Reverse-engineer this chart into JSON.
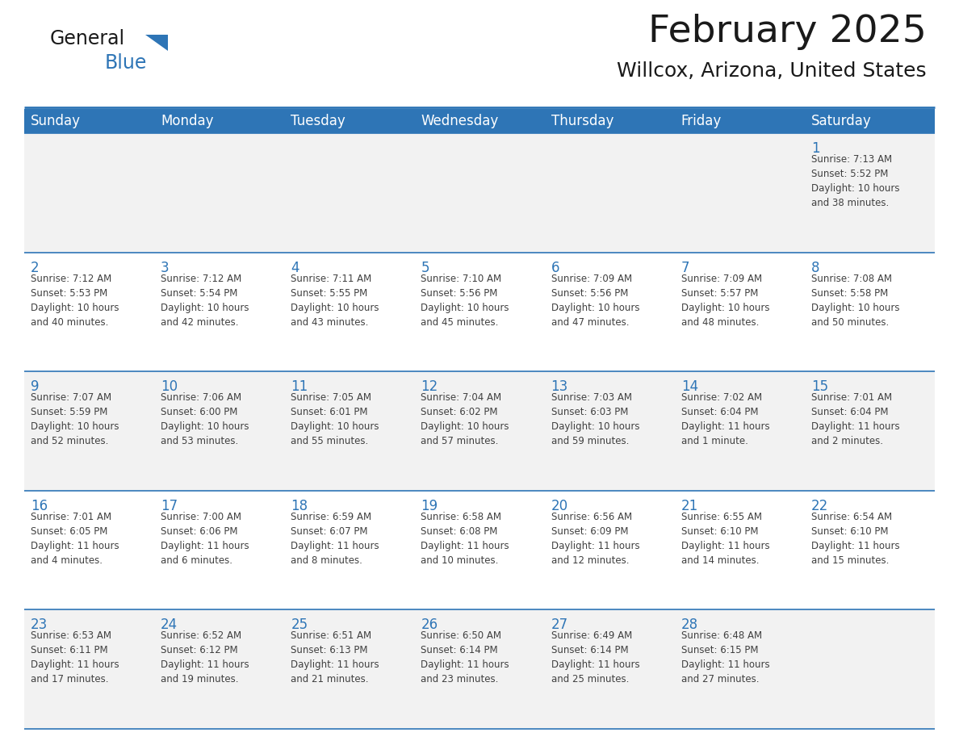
{
  "title": "February 2025",
  "subtitle": "Willcox, Arizona, United States",
  "header_bg": "#2E75B6",
  "header_text_color": "#FFFFFF",
  "cell_bg_light": "#F2F2F2",
  "cell_bg_white": "#FFFFFF",
  "day_number_color": "#2E75B6",
  "info_text_color": "#404040",
  "border_color": "#2E75B6",
  "days_of_week": [
    "Sunday",
    "Monday",
    "Tuesday",
    "Wednesday",
    "Thursday",
    "Friday",
    "Saturday"
  ],
  "weeks": [
    [
      {
        "day": "",
        "info": ""
      },
      {
        "day": "",
        "info": ""
      },
      {
        "day": "",
        "info": ""
      },
      {
        "day": "",
        "info": ""
      },
      {
        "day": "",
        "info": ""
      },
      {
        "day": "",
        "info": ""
      },
      {
        "day": "1",
        "info": "Sunrise: 7:13 AM\nSunset: 5:52 PM\nDaylight: 10 hours\nand 38 minutes."
      }
    ],
    [
      {
        "day": "2",
        "info": "Sunrise: 7:12 AM\nSunset: 5:53 PM\nDaylight: 10 hours\nand 40 minutes."
      },
      {
        "day": "3",
        "info": "Sunrise: 7:12 AM\nSunset: 5:54 PM\nDaylight: 10 hours\nand 42 minutes."
      },
      {
        "day": "4",
        "info": "Sunrise: 7:11 AM\nSunset: 5:55 PM\nDaylight: 10 hours\nand 43 minutes."
      },
      {
        "day": "5",
        "info": "Sunrise: 7:10 AM\nSunset: 5:56 PM\nDaylight: 10 hours\nand 45 minutes."
      },
      {
        "day": "6",
        "info": "Sunrise: 7:09 AM\nSunset: 5:56 PM\nDaylight: 10 hours\nand 47 minutes."
      },
      {
        "day": "7",
        "info": "Sunrise: 7:09 AM\nSunset: 5:57 PM\nDaylight: 10 hours\nand 48 minutes."
      },
      {
        "day": "8",
        "info": "Sunrise: 7:08 AM\nSunset: 5:58 PM\nDaylight: 10 hours\nand 50 minutes."
      }
    ],
    [
      {
        "day": "9",
        "info": "Sunrise: 7:07 AM\nSunset: 5:59 PM\nDaylight: 10 hours\nand 52 minutes."
      },
      {
        "day": "10",
        "info": "Sunrise: 7:06 AM\nSunset: 6:00 PM\nDaylight: 10 hours\nand 53 minutes."
      },
      {
        "day": "11",
        "info": "Sunrise: 7:05 AM\nSunset: 6:01 PM\nDaylight: 10 hours\nand 55 minutes."
      },
      {
        "day": "12",
        "info": "Sunrise: 7:04 AM\nSunset: 6:02 PM\nDaylight: 10 hours\nand 57 minutes."
      },
      {
        "day": "13",
        "info": "Sunrise: 7:03 AM\nSunset: 6:03 PM\nDaylight: 10 hours\nand 59 minutes."
      },
      {
        "day": "14",
        "info": "Sunrise: 7:02 AM\nSunset: 6:04 PM\nDaylight: 11 hours\nand 1 minute."
      },
      {
        "day": "15",
        "info": "Sunrise: 7:01 AM\nSunset: 6:04 PM\nDaylight: 11 hours\nand 2 minutes."
      }
    ],
    [
      {
        "day": "16",
        "info": "Sunrise: 7:01 AM\nSunset: 6:05 PM\nDaylight: 11 hours\nand 4 minutes."
      },
      {
        "day": "17",
        "info": "Sunrise: 7:00 AM\nSunset: 6:06 PM\nDaylight: 11 hours\nand 6 minutes."
      },
      {
        "day": "18",
        "info": "Sunrise: 6:59 AM\nSunset: 6:07 PM\nDaylight: 11 hours\nand 8 minutes."
      },
      {
        "day": "19",
        "info": "Sunrise: 6:58 AM\nSunset: 6:08 PM\nDaylight: 11 hours\nand 10 minutes."
      },
      {
        "day": "20",
        "info": "Sunrise: 6:56 AM\nSunset: 6:09 PM\nDaylight: 11 hours\nand 12 minutes."
      },
      {
        "day": "21",
        "info": "Sunrise: 6:55 AM\nSunset: 6:10 PM\nDaylight: 11 hours\nand 14 minutes."
      },
      {
        "day": "22",
        "info": "Sunrise: 6:54 AM\nSunset: 6:10 PM\nDaylight: 11 hours\nand 15 minutes."
      }
    ],
    [
      {
        "day": "23",
        "info": "Sunrise: 6:53 AM\nSunset: 6:11 PM\nDaylight: 11 hours\nand 17 minutes."
      },
      {
        "day": "24",
        "info": "Sunrise: 6:52 AM\nSunset: 6:12 PM\nDaylight: 11 hours\nand 19 minutes."
      },
      {
        "day": "25",
        "info": "Sunrise: 6:51 AM\nSunset: 6:13 PM\nDaylight: 11 hours\nand 21 minutes."
      },
      {
        "day": "26",
        "info": "Sunrise: 6:50 AM\nSunset: 6:14 PM\nDaylight: 11 hours\nand 23 minutes."
      },
      {
        "day": "27",
        "info": "Sunrise: 6:49 AM\nSunset: 6:14 PM\nDaylight: 11 hours\nand 25 minutes."
      },
      {
        "day": "28",
        "info": "Sunrise: 6:48 AM\nSunset: 6:15 PM\nDaylight: 11 hours\nand 27 minutes."
      },
      {
        "day": "",
        "info": ""
      }
    ]
  ],
  "logo_text_color": "#1a1a1a",
  "logo_blue_color": "#2E75B6",
  "title_fontsize": 34,
  "subtitle_fontsize": 18,
  "header_fontsize": 12,
  "day_num_fontsize": 12,
  "info_fontsize": 8.5
}
